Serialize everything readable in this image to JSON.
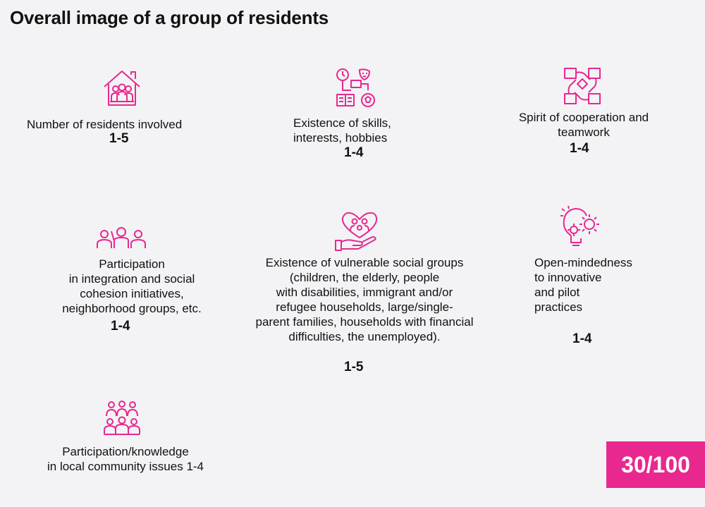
{
  "title": "Overall image of a group of residents",
  "accent_color": "#e8288f",
  "criteria": [
    {
      "icon": "house-residents-icon",
      "label": "Number of residents involved",
      "score": "1-5"
    },
    {
      "icon": "skills-hobbies-icon",
      "label": "Existence of skills,\ninterests, hobbies",
      "score": "1-4"
    },
    {
      "icon": "teamwork-hands-icon",
      "label": "Spirit of cooperation and\nteamwork",
      "score": "1-4"
    },
    {
      "icon": "participation-people-icon",
      "label": "Participation\nin integration and social\ncohesion initiatives,\nneighborhood groups, etc.",
      "score": "1-4"
    },
    {
      "icon": "heart-hand-care-icon",
      "label": "Existence of vulnerable social groups\n(children, the elderly, people\nwith disabilities, immigrant and/or\nrefugee households, large/single-\nparent families, households with financial\ndifficulties, the unemployed).",
      "score": "1-5"
    },
    {
      "icon": "lightbulb-gear-icon",
      "label": "Open-mindedness\nto innovative\nand pilot\npractices",
      "score": "1-4"
    },
    {
      "icon": "community-group-icon",
      "label": "Participation/knowledge\nin local community issues 1-4"
    }
  ],
  "total_score": "30/100"
}
